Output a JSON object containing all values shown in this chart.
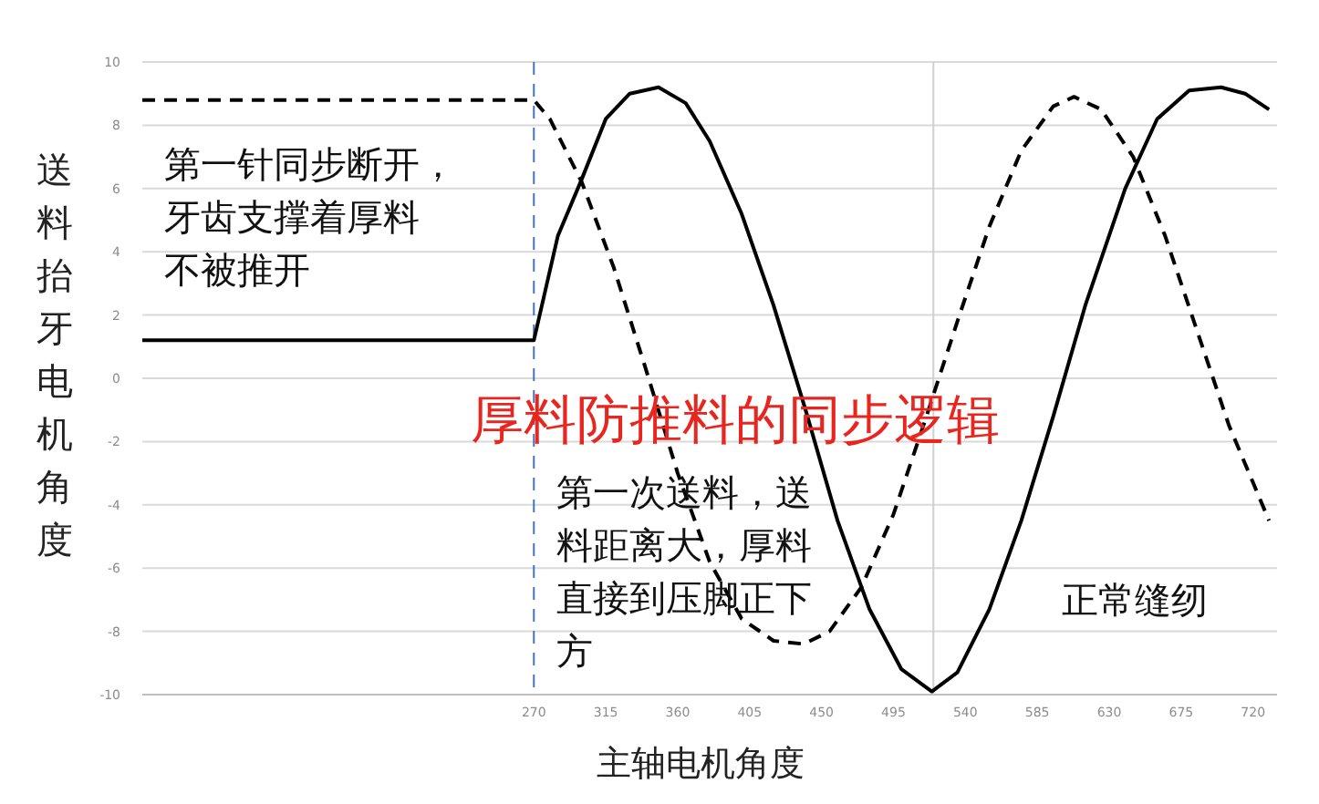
{
  "chart_data": {
    "type": "line",
    "title": "厚料防推料的同步逻辑",
    "xlabel": "主轴电机角度",
    "ylabel": "送料抬牙电机角度",
    "annotations": [
      "第一针同步断开，牙齿支撑着厚料不被推开",
      "第一次送料，送料距离大，厚料直接到压脚正下方",
      "正常缝纫"
    ],
    "xlim": [
      25,
      735
    ],
    "xticks": [
      270,
      315,
      360,
      405,
      450,
      495,
      540,
      585,
      630,
      675,
      720
    ],
    "ylim": [
      -10,
      10
    ],
    "yticks": [
      -10,
      -8,
      -6,
      -4,
      -2,
      0,
      2,
      4,
      6,
      8,
      10
    ],
    "grid": "y",
    "ref_lines": [
      {
        "axis": "x",
        "value": 270,
        "color": "#4472c4",
        "line_style": "dashed"
      },
      {
        "axis": "x",
        "value": 520,
        "color": "#d0d0d0",
        "line_style": "solid"
      }
    ],
    "series": [
      {
        "color": "#000000",
        "line_style": "solid",
        "x": [
          25,
          270,
          285,
          300,
          315,
          330,
          348,
          365,
          380,
          400,
          420,
          440,
          460,
          480,
          500,
          519,
          535,
          555,
          575,
          595,
          615,
          640,
          660,
          680,
          700,
          715,
          730
        ],
        "values": [
          1.2,
          1.2,
          4.5,
          6.3,
          8.2,
          9.0,
          9.2,
          8.7,
          7.5,
          5.2,
          2.3,
          -1.0,
          -4.5,
          -7.3,
          -9.2,
          -9.9,
          -9.3,
          -7.3,
          -4.5,
          -1.2,
          2.3,
          6.0,
          8.2,
          9.1,
          9.2,
          9.0,
          8.5
        ]
      },
      {
        "color": "#000000",
        "line_style": "dashed",
        "x": [
          25,
          270,
          280,
          300,
          320,
          340,
          360,
          380,
          400,
          420,
          439,
          455,
          475,
          495,
          515,
          535,
          555,
          575,
          595,
          608,
          625,
          645,
          665,
          685,
          705,
          730
        ],
        "values": [
          8.8,
          8.8,
          8.2,
          6.2,
          3.5,
          0.3,
          -3.0,
          -5.8,
          -7.6,
          -8.3,
          -8.4,
          -8.0,
          -6.6,
          -4.3,
          -1.3,
          1.8,
          4.8,
          7.2,
          8.6,
          8.9,
          8.5,
          7.0,
          4.5,
          1.5,
          -1.5,
          -4.5
        ]
      }
    ]
  }
}
